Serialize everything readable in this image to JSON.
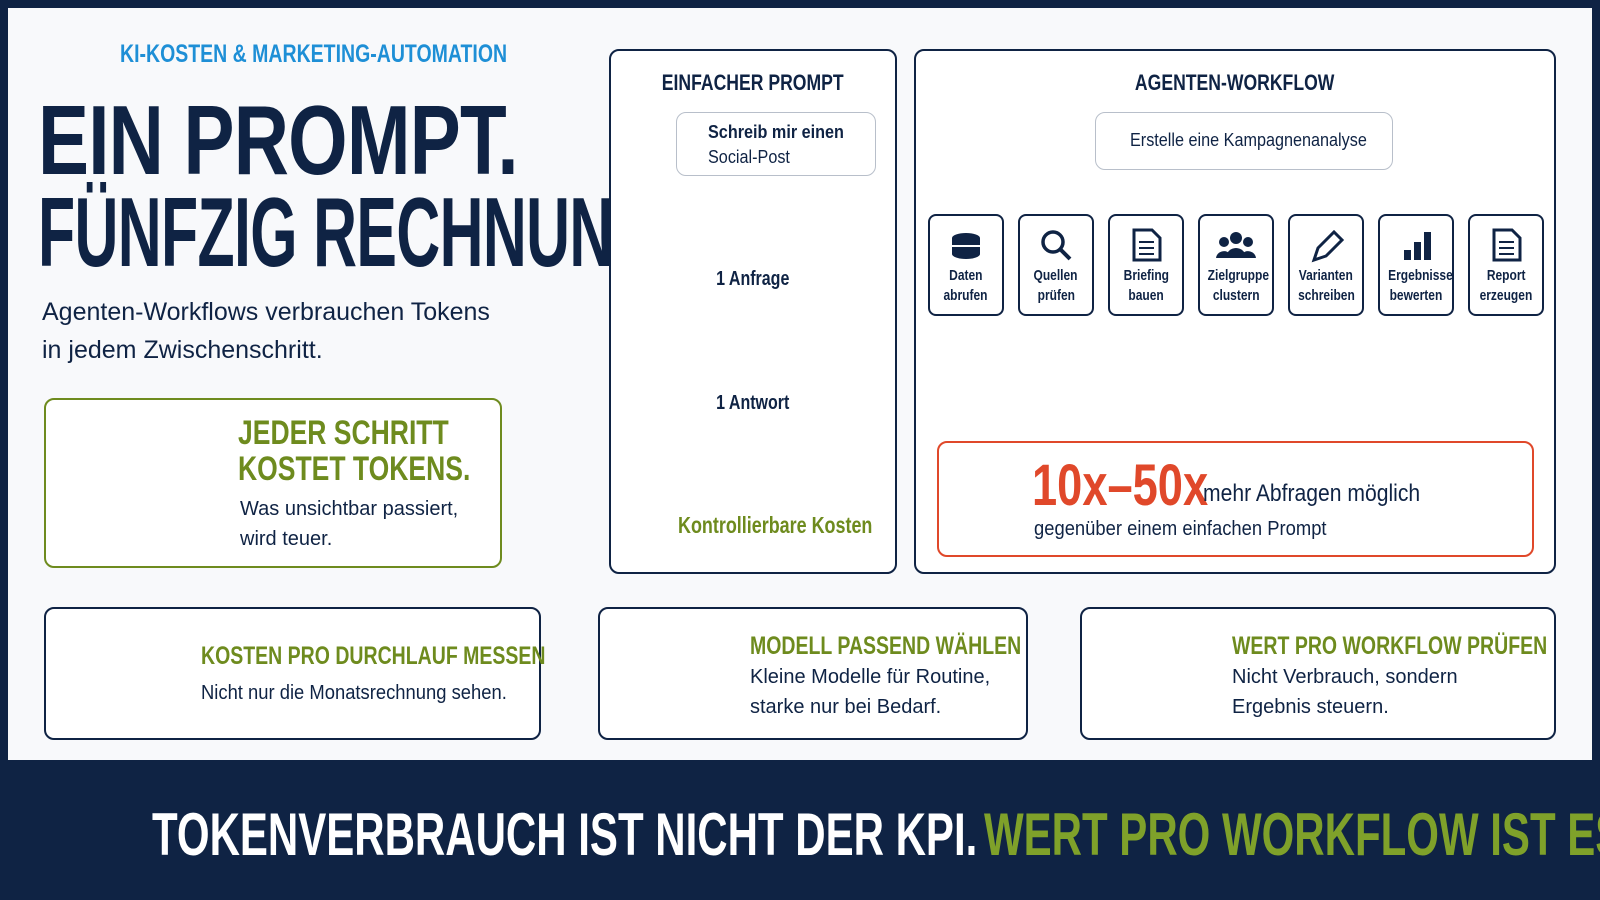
{
  "header": {
    "kicker": "KI-KOSTEN & MARKETING-AUTOMATION",
    "title_lines": [
      "EIN PROMPT.",
      "FÜNFZIG RECHNUNGEN."
    ],
    "subtitle_lines": [
      "Agenten-Workflows verbrauchen Tokens",
      "in jedem Zwischenschritt."
    ]
  },
  "callout": {
    "title_lines": [
      "JEDER SCHRITT",
      "KOSTET TOKENS."
    ],
    "text_lines": [
      "Was unsichtbar passiert,",
      "wird teuer."
    ]
  },
  "simple": {
    "title": "EINFACHER PROMPT",
    "prompt_lines": [
      "Schreib mir einen",
      "Social-Post"
    ],
    "request": "1 Anfrage",
    "answer": "1 Antwort",
    "footer": "Kontrollierbare Kosten"
  },
  "agent": {
    "title": "AGENTEN-WORKFLOW",
    "prompt": "Erstelle eine Kampagnenanalyse",
    "steps": [
      {
        "lines": [
          "Daten",
          "abrufen"
        ]
      },
      {
        "lines": [
          "Quellen",
          "prüfen"
        ]
      },
      {
        "lines": [
          "Briefing",
          "bauen"
        ]
      },
      {
        "lines": [
          "Zielgruppe",
          "clustern"
        ]
      },
      {
        "lines": [
          "Varianten",
          "schreiben"
        ]
      },
      {
        "lines": [
          "Ergebnisse",
          "bewerten"
        ]
      },
      {
        "lines": [
          "Report",
          "erzeugen"
        ]
      }
    ],
    "result": {
      "multiplier": "10x–50x",
      "text": "mehr Abfragen möglich",
      "subtext": "gegenüber einem einfachen Prompt"
    }
  },
  "tips": [
    {
      "title": "KOSTEN PRO DURCHLAUF MESSEN",
      "text_lines": [
        "Nicht nur die Monatsrechnung sehen."
      ]
    },
    {
      "title": "MODELL PASSEND WÄHLEN",
      "text_lines": [
        "Kleine Modelle für Routine,",
        "starke nur bei Bedarf."
      ]
    },
    {
      "title": "WERT PRO WORKFLOW PRÜFEN",
      "text_lines": [
        "Nicht Verbrauch, sondern",
        "Ergebnis steuern."
      ]
    }
  ],
  "footer": {
    "left": "TOKENVERBRAUCH IST NICHT DER KPI.",
    "right": "WERT PRO WORKFLOW IST ES."
  }
}
